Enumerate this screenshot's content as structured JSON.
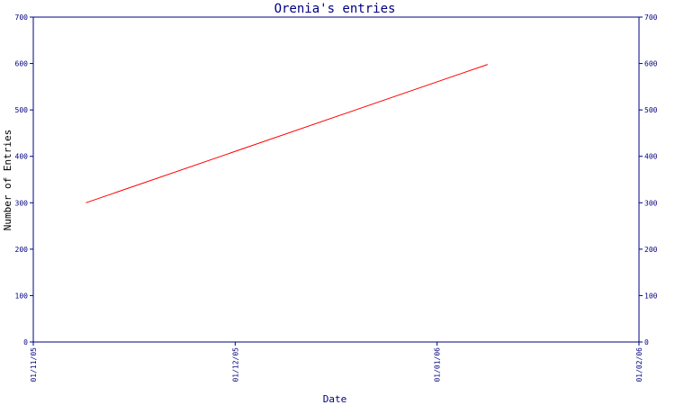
{
  "chart_data": {
    "type": "line",
    "title": "Orenia's entries",
    "xlabel": "Date",
    "ylabel": "Number of Entries",
    "x_ticks": [
      "01/11/05",
      "01/12/05",
      "01/01/06",
      "01/02/06"
    ],
    "x_range": [
      "2005-11-01",
      "2006-02-01"
    ],
    "ylim": [
      0,
      700
    ],
    "y_ticks": [
      0,
      100,
      200,
      300,
      400,
      500,
      600,
      700
    ],
    "grid": false,
    "legend": "none",
    "series": [
      {
        "x": [
          "2005-11-09",
          "2006-01-09"
        ],
        "y": [
          300,
          598
        ],
        "color": "#ff0000"
      }
    ],
    "colors": {
      "axis": "#000080",
      "text": "#000080",
      "ylabel_text": "#000000",
      "title": "#000080"
    }
  }
}
